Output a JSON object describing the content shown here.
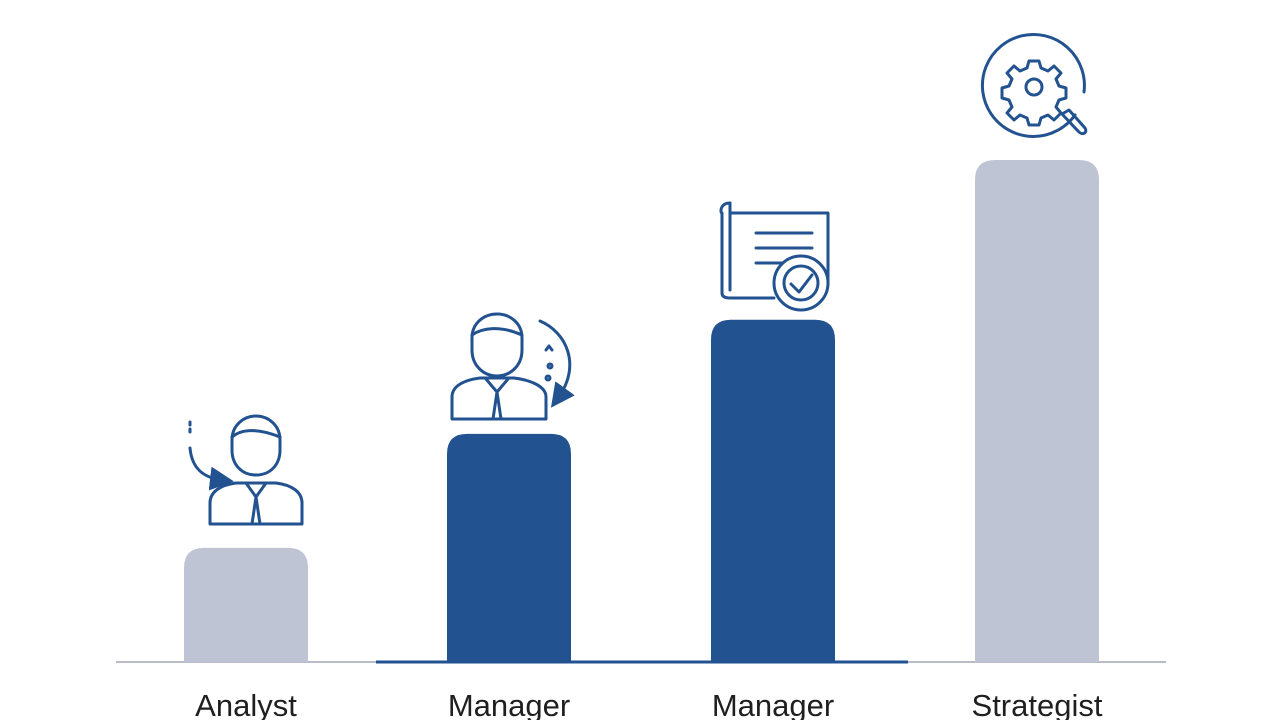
{
  "chart_data": {
    "type": "bar",
    "title": "",
    "xlabel": "",
    "ylabel": "",
    "categories": [
      "Analyst",
      "Manager",
      "Manager",
      "Strategist"
    ],
    "values": [
      1,
      2,
      3,
      4.4
    ],
    "ylim": [
      0,
      4.4
    ],
    "grid": false,
    "legend": "none",
    "bar_colors": [
      "#bfc4d4",
      "#22528f",
      "#22528f",
      "#bfc4d4"
    ],
    "baseline_color": "#b9bcc6",
    "baseline_highlight_color": "#22528f",
    "icon_color": "#22528f",
    "icons": [
      "person-arrow-icon",
      "person-refresh-icon",
      "document-check-icon",
      "gear-search-icon"
    ]
  }
}
